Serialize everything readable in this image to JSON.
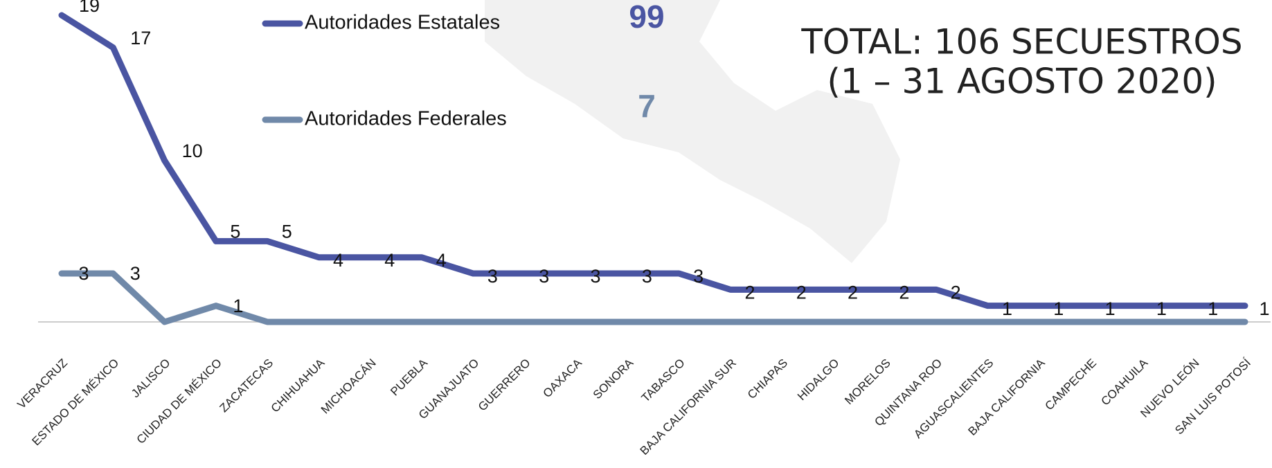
{
  "chart_data": {
    "type": "line",
    "title": [
      "TOTAL: 106 SECUESTROS",
      "(1 – 31 AGOSTO 2020)"
    ],
    "categories": [
      "VERACRUZ",
      "ESTADO DE MÉXICO",
      "JALISCO",
      "CIUDAD DE MÉXICO",
      "ZACATECAS",
      "CHIHUAHUA",
      "MICHOACÁN",
      "PUEBLA",
      "GUANAJUATO",
      "GUERRERO",
      "OAXACA",
      "SONORA",
      "TABASCO",
      "BAJA CALIFORNIA SUR",
      "CHIAPAS",
      "HIDALGO",
      "MORELOS",
      "QUINTANA ROO",
      "AGUASCALIENTES",
      "BAJA CALIFORNIA",
      "CAMPECHE",
      "COAHUILA",
      "NUEVO LEÓN",
      "SAN LUIS POTOSÍ"
    ],
    "series": [
      {
        "name": "Autoridades Estatales",
        "color": "#4a55a2",
        "total": 99,
        "values": [
          19,
          17,
          10,
          5,
          5,
          4,
          4,
          4,
          3,
          3,
          3,
          3,
          3,
          2,
          2,
          2,
          2,
          2,
          1,
          1,
          1,
          1,
          1,
          1
        ]
      },
      {
        "name": "Autoridades Federales",
        "color": "#7089a9",
        "total": 7,
        "values": [
          3,
          3,
          0,
          1,
          0,
          0,
          0,
          0,
          0,
          0,
          0,
          0,
          0,
          0,
          0,
          0,
          0,
          0,
          0,
          0,
          0,
          0,
          0,
          0
        ]
      }
    ],
    "ylim": [
      0,
      19
    ]
  }
}
